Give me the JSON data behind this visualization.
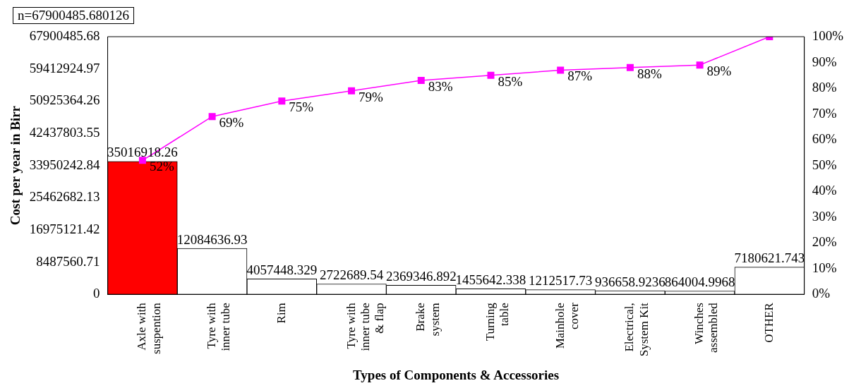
{
  "chart_data": {
    "type": "bar",
    "xlabel": "Types of Components & Accessories",
    "ylabel": "Cost per year in Birr",
    "annotations": [
      "n=67900485.680126"
    ],
    "categories": [
      "Axle with\nsuspention",
      "Tyre with\ninner tube",
      "Rim",
      "Tyre with\ninner tube\n& flap",
      "Brake\nsystem",
      "Turning\ntable",
      "Mainhole\ncover",
      "Electrical,\nSystem Kit",
      "Winches\nassembled",
      "OTHER"
    ],
    "series": [
      {
        "values": [
          35016918.26,
          12084636.93,
          4057448.329,
          2722689.54,
          2369346.892,
          1455642.338,
          1212517.73,
          936658.9236,
          864004.9968,
          7180621.743
        ],
        "colors": [
          "#ff0000",
          "#ffffff",
          "#ffffff",
          "#ffffff",
          "#ffffff",
          "#ffffff",
          "#ffffff",
          "#ffffff",
          "#ffffff",
          "#ffffff"
        ],
        "data_labels": true
      },
      {
        "type": "line",
        "axis": "y2",
        "color": "#ff00ff",
        "marker": "square",
        "values": [
          52,
          69,
          75,
          79,
          83,
          85,
          87,
          88,
          89,
          100
        ],
        "value_labels": [
          "52%",
          "69%",
          "75%",
          "79%",
          "83%",
          "85%",
          "87%",
          "88%",
          "89%",
          null
        ]
      }
    ],
    "ylim": [
      0,
      67900485.68
    ],
    "yticks": [
      0,
      8487560.71,
      16975121.42,
      25462682.13,
      33950242.84,
      42437803.55,
      50925364.26,
      59412924.97,
      67900485.68
    ],
    "y2lim": [
      0,
      100
    ],
    "y2ticks": [
      {
        "value": 0,
        "label": "0%"
      },
      {
        "value": 10,
        "label": "10%"
      },
      {
        "value": 20,
        "label": "20%"
      },
      {
        "value": 30,
        "label": "30%"
      },
      {
        "value": 40,
        "label": "40%"
      },
      {
        "value": 50,
        "label": "50%"
      },
      {
        "value": 60,
        "label": "60%"
      },
      {
        "value": 70,
        "label": "70%"
      },
      {
        "value": 80,
        "label": "80%"
      },
      {
        "value": 90,
        "label": "90%"
      },
      {
        "value": 100,
        "label": "100%"
      }
    ],
    "grid": false,
    "legend": false
  }
}
